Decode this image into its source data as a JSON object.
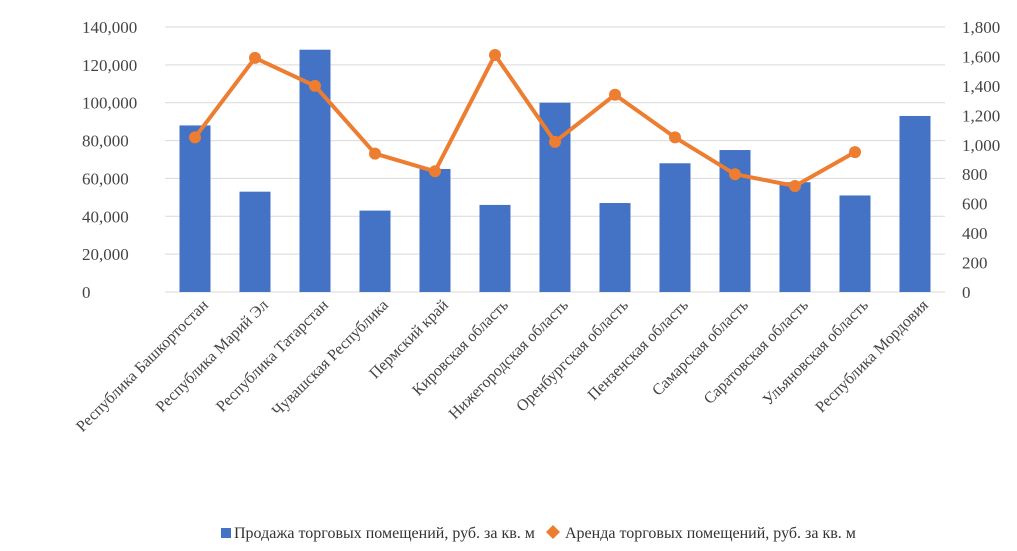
{
  "chart_data": {
    "type": "bar+line",
    "categories": [
      "Республика Башкортостан",
      "Республика Марий Эл",
      "Республика Татарстан",
      "Чувашская Республика",
      "Пермский край",
      "Кировская область",
      "Нижегородская область",
      "Оренбургская область",
      "Пензенская область",
      "Самарская область",
      "Саратовская область",
      "Ульяновская область",
      "Республика Мордовия"
    ],
    "series": [
      {
        "name": "Продажа торговых помещений, руб. за кв. м",
        "type": "bar",
        "axis": "left",
        "color": "#4472c4",
        "values": [
          88000,
          53000,
          128000,
          43000,
          65000,
          46000,
          100000,
          47000,
          68000,
          75000,
          58000,
          51000,
          93000
        ]
      },
      {
        "name": "Аренда торговых помещений, руб. за кв. м",
        "type": "line",
        "axis": "right",
        "color": "#ed7d31",
        "values": [
          1050,
          1590,
          1400,
          940,
          820,
          1610,
          1020,
          1340,
          1050,
          800,
          720,
          950,
          null
        ]
      }
    ],
    "left_axis": {
      "ylim": [
        0,
        140000
      ],
      "ticks": [
        0,
        20000,
        40000,
        60000,
        80000,
        100000,
        120000,
        140000
      ],
      "tick_labels": [
        "0",
        "20,000",
        "40,000",
        "60,000",
        "80,000",
        "100,000",
        "120,000",
        "140,000"
      ]
    },
    "right_axis": {
      "ylim": [
        0,
        1800
      ],
      "ticks": [
        0,
        200,
        400,
        600,
        800,
        1000,
        1200,
        1400,
        1600,
        1800
      ],
      "tick_labels": [
        "0",
        "200",
        "400",
        "600",
        "800",
        "1,000",
        "1,200",
        "1,400",
        "1,600",
        "1,800"
      ]
    },
    "grid": true,
    "legend_position": "bottom"
  }
}
